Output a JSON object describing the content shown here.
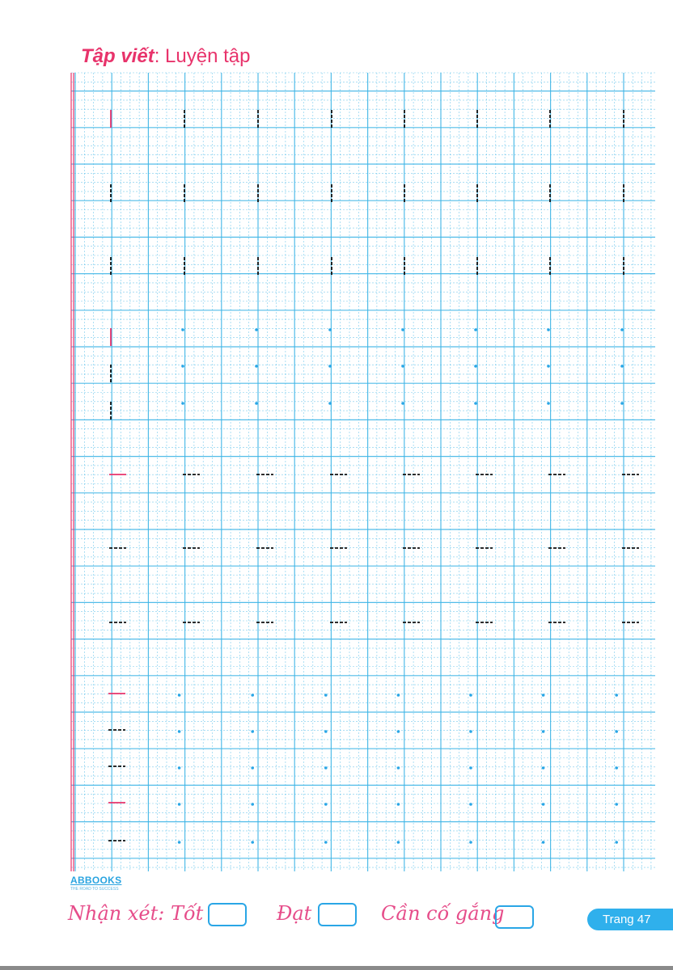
{
  "title": {
    "bold": "Tập viết",
    "separator": ":",
    "rest": " Luyện tập"
  },
  "publisher": {
    "name": "ABBOOKS",
    "tagline": "THE ROAD TO SUCCESS"
  },
  "remarks": {
    "label": "Nhận xét:",
    "good": "Tốt",
    "pass": "Đạt",
    "try_harder": "Cần cố gắng"
  },
  "page_label": "Trang 47",
  "colors": {
    "accent_pink": "#e8336b",
    "grid_blue": "#3fb5e6",
    "page_tab": "#2fb0ec"
  }
}
